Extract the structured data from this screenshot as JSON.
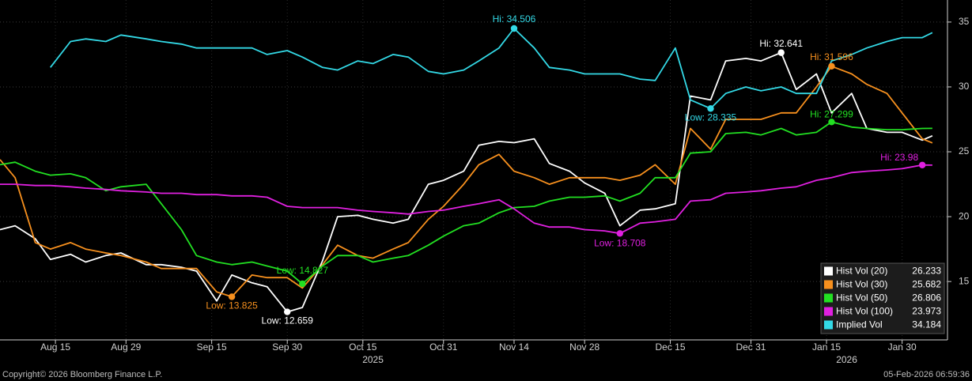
{
  "chart_data": {
    "type": "line",
    "x": [
      "2025-08-04",
      "2025-08-07",
      "2025-08-11",
      "2025-08-14",
      "2025-08-18",
      "2025-08-21",
      "2025-08-25",
      "2025-08-28",
      "2025-09-02",
      "2025-09-05",
      "2025-09-09",
      "2025-09-12",
      "2025-09-16",
      "2025-09-19",
      "2025-09-23",
      "2025-09-26",
      "2025-09-30",
      "2025-10-03",
      "2025-10-07",
      "2025-10-10",
      "2025-10-14",
      "2025-10-17",
      "2025-10-21",
      "2025-10-24",
      "2025-10-28",
      "2025-10-31",
      "2025-11-04",
      "2025-11-07",
      "2025-11-11",
      "2025-11-14",
      "2025-11-18",
      "2025-11-21",
      "2025-11-25",
      "2025-11-28",
      "2025-12-02",
      "2025-12-05",
      "2025-12-09",
      "2025-12-12",
      "2025-12-16",
      "2025-12-19",
      "2025-12-23",
      "2025-12-26",
      "2025-12-30",
      "2026-01-02",
      "2026-01-06",
      "2026-01-09",
      "2026-01-13",
      "2026-01-16",
      "2026-01-20",
      "2026-01-23",
      "2026-01-27",
      "2026-01-30",
      "2026-02-03",
      "2026-02-05"
    ],
    "series": [
      {
        "name": "Hist Vol (20)",
        "color": "#ffffff",
        "values": [
          19.0,
          19.3,
          18.3,
          16.7,
          17.1,
          16.5,
          17.0,
          17.2,
          16.3,
          16.3,
          16.1,
          15.8,
          13.5,
          15.5,
          14.9,
          14.6,
          12.659,
          13.0,
          16.6,
          20.0,
          20.1,
          19.8,
          19.5,
          19.8,
          22.5,
          22.8,
          23.5,
          25.5,
          25.8,
          25.7,
          26.0,
          24.1,
          23.5,
          22.6,
          21.8,
          19.3,
          20.5,
          20.6,
          21.0,
          29.3,
          29.0,
          32.0,
          32.2,
          32.0,
          32.641,
          29.8,
          31.0,
          28.0,
          29.5,
          26.8,
          26.5,
          26.5,
          25.9,
          26.233
        ]
      },
      {
        "name": "Hist Vol (30)",
        "color": "#f7901e",
        "values": [
          24.4,
          23.0,
          18.0,
          17.5,
          18.0,
          17.5,
          17.2,
          17.0,
          16.5,
          16.0,
          16.0,
          16.0,
          14.2,
          13.825,
          15.5,
          15.3,
          15.3,
          14.5,
          16.3,
          17.8,
          17.0,
          16.8,
          17.5,
          18.0,
          19.8,
          20.8,
          22.5,
          24.0,
          24.8,
          23.5,
          23.0,
          22.5,
          23.0,
          23.0,
          23.0,
          22.8,
          23.2,
          24.0,
          22.5,
          26.8,
          25.2,
          27.5,
          27.5,
          27.5,
          28.0,
          28.0,
          30.0,
          31.596,
          31.0,
          30.2,
          29.5,
          28.0,
          26.0,
          25.682
        ]
      },
      {
        "name": "Hist Vol (50)",
        "color": "#22e022",
        "values": [
          24.0,
          24.2,
          23.5,
          23.2,
          23.3,
          23.0,
          22.0,
          22.3,
          22.5,
          21.0,
          19.0,
          17.0,
          16.5,
          16.3,
          16.5,
          16.2,
          15.8,
          14.827,
          16.2,
          17.0,
          17.0,
          16.5,
          16.8,
          17.0,
          17.8,
          18.5,
          19.3,
          19.5,
          20.3,
          20.7,
          20.8,
          21.2,
          21.5,
          21.5,
          21.6,
          21.2,
          21.8,
          23.0,
          23.0,
          24.9,
          25.0,
          26.4,
          26.5,
          26.3,
          26.8,
          26.3,
          26.5,
          27.299,
          26.9,
          26.8,
          26.7,
          26.7,
          26.8,
          26.806
        ]
      },
      {
        "name": "Hist Vol (100)",
        "color": "#e020e0",
        "values": [
          22.5,
          22.5,
          22.4,
          22.4,
          22.3,
          22.2,
          22.1,
          22.0,
          21.9,
          21.8,
          21.8,
          21.7,
          21.7,
          21.6,
          21.6,
          21.5,
          20.8,
          20.7,
          20.7,
          20.7,
          20.5,
          20.4,
          20.3,
          20.2,
          20.4,
          20.5,
          20.8,
          21.0,
          21.3,
          20.6,
          19.5,
          19.2,
          19.2,
          19.0,
          18.9,
          18.708,
          19.5,
          19.6,
          19.8,
          21.2,
          21.3,
          21.8,
          21.9,
          22.0,
          22.2,
          22.3,
          22.8,
          23.0,
          23.4,
          23.5,
          23.6,
          23.7,
          23.98,
          23.973
        ]
      },
      {
        "name": "Implied Vol",
        "color": "#33d9e6",
        "values": [
          null,
          null,
          null,
          31.5,
          33.5,
          33.7,
          33.5,
          34.0,
          33.7,
          33.5,
          33.3,
          33.0,
          33.0,
          33.0,
          33.0,
          32.5,
          32.8,
          32.3,
          31.5,
          31.3,
          32.0,
          31.8,
          32.5,
          32.3,
          31.2,
          31.0,
          31.3,
          32.0,
          33.0,
          34.506,
          33.0,
          31.5,
          31.3,
          31.0,
          31.0,
          31.0,
          30.6,
          30.5,
          33.0,
          29.0,
          28.335,
          29.5,
          30.0,
          29.7,
          30.0,
          29.5,
          29.5,
          32.0,
          32.5,
          33.0,
          33.5,
          33.8,
          33.8,
          34.184
        ]
      }
    ],
    "annotations": [
      {
        "label": "Hi: 34.506",
        "x": "2025-11-14",
        "value": 34.506,
        "color": "#33d9e6"
      },
      {
        "label": "Hi: 32.641",
        "x": "2026-01-06",
        "value": 32.641,
        "color": "#ffffff"
      },
      {
        "label": "Hi: 31.596",
        "x": "2026-01-16",
        "value": 31.596,
        "color": "#f7901e"
      },
      {
        "label": "Hi: 27.299",
        "x": "2026-01-16",
        "value": 27.299,
        "color": "#22e022"
      },
      {
        "label": "Hi: 23.98",
        "x": "2026-02-03",
        "value": 23.98,
        "color": "#e020e0"
      },
      {
        "label": "Low: 28.335",
        "x": "2025-12-23",
        "value": 28.335,
        "color": "#33d9e6"
      },
      {
        "label": "Low: 18.708",
        "x": "2025-12-05",
        "value": 18.708,
        "color": "#e020e0"
      },
      {
        "label": "Low: 13.825",
        "x": "2025-09-19",
        "value": 13.825,
        "color": "#f7901e"
      },
      {
        "label": "Low: 14.827",
        "x": "2025-10-03",
        "value": 14.827,
        "color": "#22e022"
      },
      {
        "label": "Low: 12.659",
        "x": "2025-09-30",
        "value": 12.659,
        "color": "#ffffff"
      }
    ],
    "xlim": [
      "2025-08-04",
      "2026-02-08"
    ],
    "xticks": [
      {
        "value": "2025-08-15",
        "label": "Aug 15"
      },
      {
        "value": "2025-08-29",
        "label": "Aug 29"
      },
      {
        "value": "2025-09-15",
        "label": "Sep 15"
      },
      {
        "value": "2025-09-30",
        "label": "Sep 30"
      },
      {
        "value": "2025-10-15",
        "label": "Oct 15"
      },
      {
        "value": "2025-10-31",
        "label": "Oct 31"
      },
      {
        "value": "2025-11-14",
        "label": "Nov 14"
      },
      {
        "value": "2025-11-28",
        "label": "Nov 28"
      },
      {
        "value": "2025-12-15",
        "label": "Dec 15"
      },
      {
        "value": "2025-12-31",
        "label": "Dec 31"
      },
      {
        "value": "2026-01-15",
        "label": "Jan 15"
      },
      {
        "value": "2026-01-30",
        "label": "Jan 30"
      }
    ],
    "year_labels": [
      {
        "value": "2025-10-17",
        "label": "2025"
      },
      {
        "value": "2026-01-19",
        "label": "2026"
      }
    ],
    "ylim": [
      10.5,
      36.7
    ],
    "yticks": [
      15,
      20,
      25,
      30,
      35
    ],
    "grid": true,
    "legend": "lower right",
    "copyright": "Copyright© 2026 Bloomberg Finance L.P.",
    "timestamp": "05-Feb-2026 06:59:36"
  }
}
